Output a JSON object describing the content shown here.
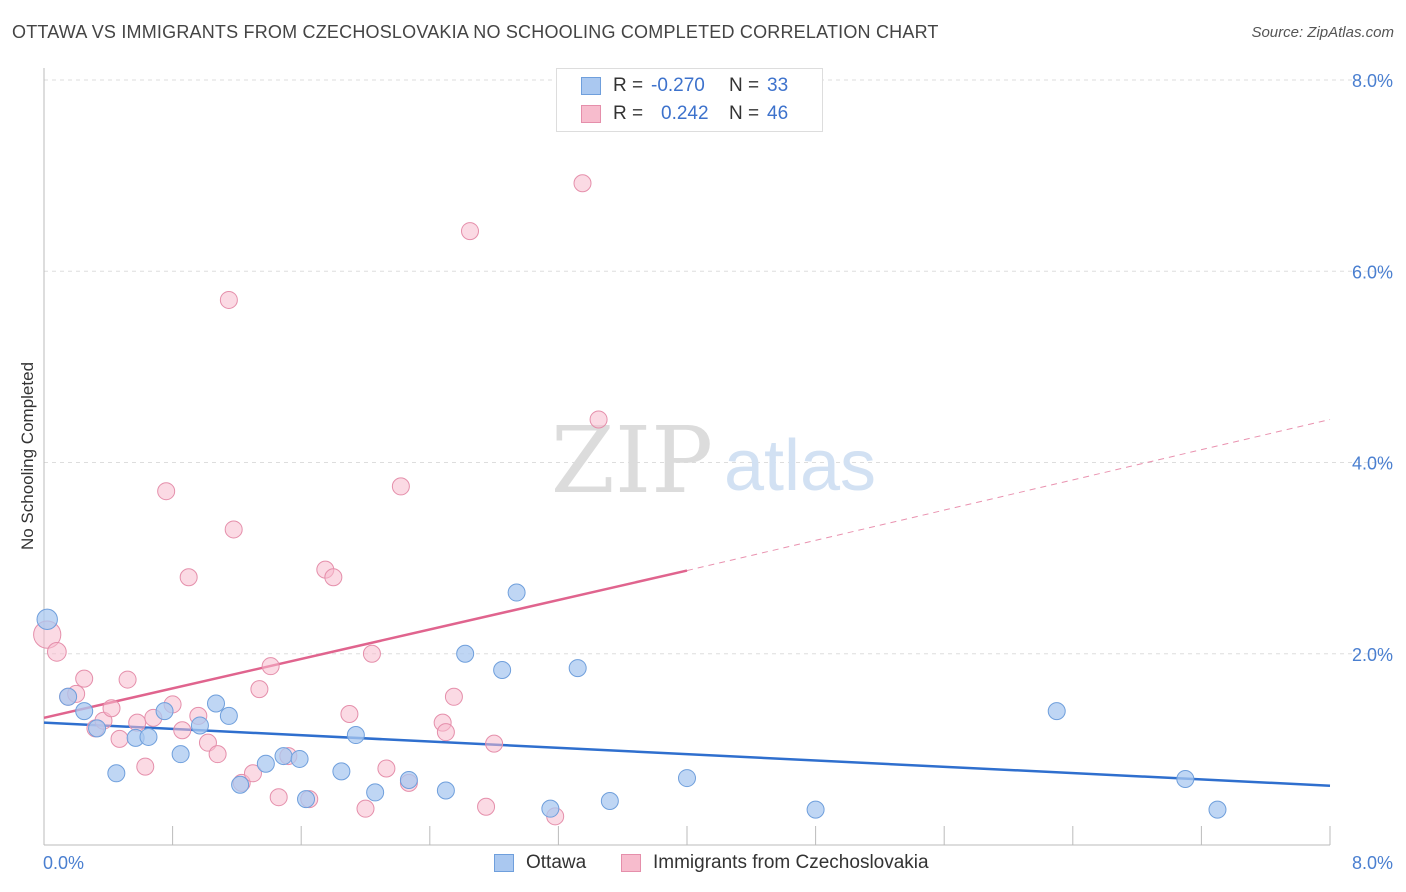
{
  "title": "OTTAWA VS IMMIGRANTS FROM CZECHOSLOVAKIA NO SCHOOLING COMPLETED CORRELATION CHART",
  "source": "Source: ZipAtlas.com",
  "watermark": {
    "zip": "ZIP",
    "atlas": "atlas"
  },
  "colors": {
    "ottawa_fill": "#aac8f0",
    "ottawa_stroke": "#6f9fdc",
    "ottawa_line": "#2f6fce",
    "czech_fill": "#f7bccd",
    "czech_stroke": "#e58fab",
    "czech_line": "#e0648e",
    "tick_text": "#4a7fd0",
    "grid": "#dddddd"
  },
  "legend": {
    "rows": [
      {
        "r_label": "R =",
        "r_value": "-0.270",
        "n_label": "N =",
        "n_value": "33"
      },
      {
        "r_label": "R =",
        "r_value": "0.242",
        "n_label": "N =",
        "n_value": "46"
      }
    ]
  },
  "series_labels": {
    "ottawa": "Ottawa",
    "czech": "Immigrants from Czechoslovakia"
  },
  "chart_data": {
    "type": "scatter",
    "title": "OTTAWA VS IMMIGRANTS FROM CZECHOSLOVAKIA NO SCHOOLING COMPLETED CORRELATION CHART",
    "xlabel": "",
    "ylabel": "No Schooling Completed",
    "xlim": [
      0,
      8
    ],
    "ylim": [
      0,
      8
    ],
    "x_tick_labels": [
      "0.0%",
      "8.0%"
    ],
    "y_ticks": [
      2,
      4,
      6,
      8
    ],
    "y_tick_labels": [
      "2.0%",
      "4.0%",
      "6.0%",
      "8.0%"
    ],
    "grid": true,
    "legend_position": "top-center",
    "series": [
      {
        "name": "Ottawa",
        "r": -0.27,
        "n": 33,
        "trend": {
          "x0": 0,
          "y0": 1.28,
          "x1": 8,
          "y1": 0.62
        },
        "points": [
          {
            "x": 0.02,
            "y": 2.36,
            "s": 1.2
          },
          {
            "x": 0.15,
            "y": 1.55
          },
          {
            "x": 0.25,
            "y": 1.4
          },
          {
            "x": 0.33,
            "y": 1.22
          },
          {
            "x": 0.45,
            "y": 0.75
          },
          {
            "x": 0.57,
            "y": 1.12
          },
          {
            "x": 0.65,
            "y": 1.13
          },
          {
            "x": 0.75,
            "y": 1.4
          },
          {
            "x": 0.85,
            "y": 0.95
          },
          {
            "x": 0.97,
            "y": 1.25
          },
          {
            "x": 1.07,
            "y": 1.48
          },
          {
            "x": 1.15,
            "y": 1.35
          },
          {
            "x": 1.22,
            "y": 0.63
          },
          {
            "x": 1.38,
            "y": 0.85
          },
          {
            "x": 1.49,
            "y": 0.93
          },
          {
            "x": 1.59,
            "y": 0.9
          },
          {
            "x": 1.63,
            "y": 0.48
          },
          {
            "x": 1.85,
            "y": 0.77
          },
          {
            "x": 1.94,
            "y": 1.15
          },
          {
            "x": 2.06,
            "y": 0.55
          },
          {
            "x": 2.27,
            "y": 0.68
          },
          {
            "x": 2.5,
            "y": 0.57
          },
          {
            "x": 2.62,
            "y": 2.0
          },
          {
            "x": 2.85,
            "y": 1.83
          },
          {
            "x": 2.94,
            "y": 2.64
          },
          {
            "x": 3.15,
            "y": 0.38
          },
          {
            "x": 3.32,
            "y": 1.85
          },
          {
            "x": 3.52,
            "y": 0.46
          },
          {
            "x": 4.0,
            "y": 0.7
          },
          {
            "x": 4.8,
            "y": 0.37
          },
          {
            "x": 6.3,
            "y": 1.4
          },
          {
            "x": 7.1,
            "y": 0.69
          },
          {
            "x": 7.3,
            "y": 0.37
          }
        ]
      },
      {
        "name": "Immigrants from Czechoslovakia",
        "r": 0.242,
        "n": 46,
        "trend": {
          "x0": 0,
          "y0": 1.33,
          "x1": 4.0,
          "y1": 2.87,
          "extends_dashed_to": {
            "x": 8,
            "y": 4.45
          }
        },
        "points": [
          {
            "x": 0.02,
            "y": 2.2,
            "s": 1.6
          },
          {
            "x": 0.08,
            "y": 2.02,
            "s": 1.1
          },
          {
            "x": 0.15,
            "y": 1.55
          },
          {
            "x": 0.2,
            "y": 1.58
          },
          {
            "x": 0.25,
            "y": 1.74
          },
          {
            "x": 0.32,
            "y": 1.22
          },
          {
            "x": 0.37,
            "y": 1.3
          },
          {
            "x": 0.42,
            "y": 1.43
          },
          {
            "x": 0.47,
            "y": 1.11
          },
          {
            "x": 0.52,
            "y": 1.73
          },
          {
            "x": 0.58,
            "y": 1.28
          },
          {
            "x": 0.63,
            "y": 0.82
          },
          {
            "x": 0.68,
            "y": 1.33
          },
          {
            "x": 0.76,
            "y": 3.7
          },
          {
            "x": 0.8,
            "y": 1.47
          },
          {
            "x": 0.86,
            "y": 1.2
          },
          {
            "x": 0.9,
            "y": 2.8
          },
          {
            "x": 0.96,
            "y": 1.35
          },
          {
            "x": 1.02,
            "y": 1.07
          },
          {
            "x": 1.08,
            "y": 0.95
          },
          {
            "x": 1.15,
            "y": 5.7
          },
          {
            "x": 1.18,
            "y": 3.3
          },
          {
            "x": 1.23,
            "y": 0.65
          },
          {
            "x": 1.3,
            "y": 0.75
          },
          {
            "x": 1.34,
            "y": 1.63
          },
          {
            "x": 1.41,
            "y": 1.87
          },
          {
            "x": 1.46,
            "y": 0.5
          },
          {
            "x": 1.52,
            "y": 0.93
          },
          {
            "x": 1.65,
            "y": 0.48
          },
          {
            "x": 1.75,
            "y": 2.88
          },
          {
            "x": 1.8,
            "y": 2.8
          },
          {
            "x": 1.9,
            "y": 1.37
          },
          {
            "x": 2.0,
            "y": 0.38
          },
          {
            "x": 2.04,
            "y": 2.0
          },
          {
            "x": 2.13,
            "y": 0.8
          },
          {
            "x": 2.22,
            "y": 3.75
          },
          {
            "x": 2.27,
            "y": 0.65
          },
          {
            "x": 2.48,
            "y": 1.28
          },
          {
            "x": 2.5,
            "y": 1.18
          },
          {
            "x": 2.55,
            "y": 1.55
          },
          {
            "x": 2.65,
            "y": 6.42
          },
          {
            "x": 2.75,
            "y": 0.4
          },
          {
            "x": 2.8,
            "y": 1.06
          },
          {
            "x": 3.18,
            "y": 0.3
          },
          {
            "x": 3.35,
            "y": 6.92
          },
          {
            "x": 3.45,
            "y": 4.45
          }
        ]
      }
    ]
  }
}
